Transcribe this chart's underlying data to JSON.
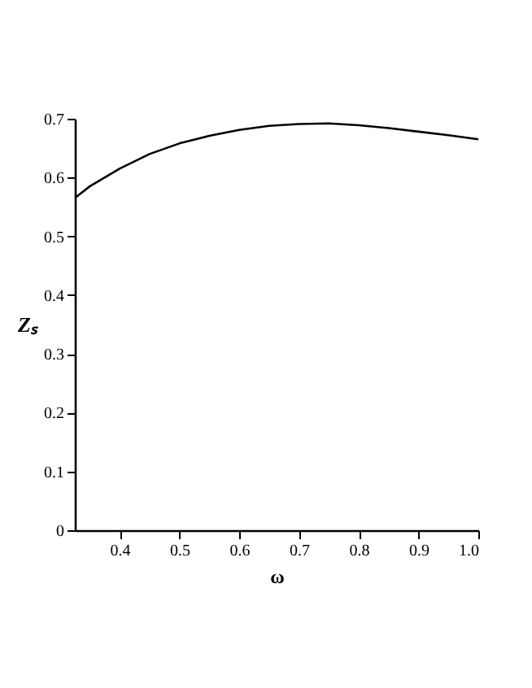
{
  "chart_data": {
    "type": "line",
    "xlabel": "ω",
    "ylabel": "Zₛ",
    "x": [
      0.325,
      0.35,
      0.4,
      0.45,
      0.5,
      0.55,
      0.6,
      0.65,
      0.7,
      0.75,
      0.8,
      0.85,
      0.9,
      0.95,
      1.0
    ],
    "series": [
      {
        "color": "#000000",
        "values": [
          0.565,
          0.585,
          0.615,
          0.64,
          0.658,
          0.671,
          0.681,
          0.688,
          0.691,
          0.692,
          0.689,
          0.684,
          0.678,
          0.672,
          0.665
        ]
      }
    ],
    "xlim": [
      0.325,
      1.0
    ],
    "xticks": [
      {
        "value": 0.4,
        "label": "0.4"
      },
      {
        "value": 0.5,
        "label": "0.5"
      },
      {
        "value": 0.6,
        "label": "0.6"
      },
      {
        "value": 0.7,
        "label": "0.7"
      },
      {
        "value": 0.8,
        "label": "0.8"
      },
      {
        "value": 0.9,
        "label": "0.9"
      },
      {
        "value": 1.0,
        "label": "1.0"
      }
    ],
    "ylim": [
      0,
      0.7
    ],
    "yticks": [
      0,
      0.1,
      0.2,
      0.3,
      0.4,
      0.5,
      0.6,
      0.7
    ],
    "grid": false,
    "marker": "none",
    "line_style": "solid"
  }
}
